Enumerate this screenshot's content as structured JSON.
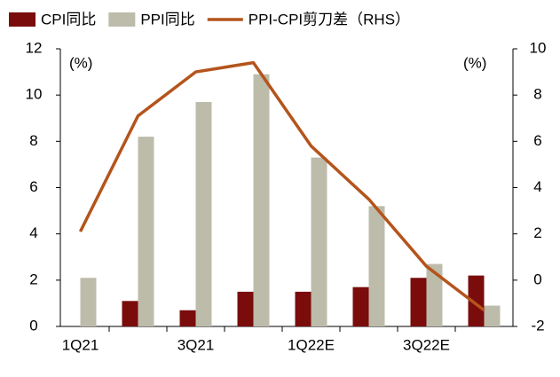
{
  "chart_data": {
    "type": "bar",
    "categories": [
      "1Q21",
      null,
      "3Q21",
      null,
      "1Q22E",
      null,
      "3Q22E",
      null
    ],
    "series": [
      {
        "name": "CPI同比",
        "color": "#7a0c0c",
        "type": "bar",
        "values": [
          0,
          1.1,
          0.7,
          1.5,
          1.5,
          1.7,
          2.1,
          2.2
        ]
      },
      {
        "name": "PPI同比",
        "color": "#bdbcab",
        "type": "bar",
        "values": [
          2.1,
          8.2,
          9.7,
          10.9,
          7.3,
          5.2,
          2.7,
          0.9
        ]
      },
      {
        "name": "PPI-CPI剪刀差（RHS）",
        "color": "#b4541c",
        "type": "line",
        "axis": "y2",
        "values": [
          2.1,
          7.1,
          9.0,
          9.4,
          5.8,
          3.5,
          0.6,
          -1.3
        ]
      }
    ],
    "ylim": [
      0,
      12
    ],
    "yticks": [
      0,
      2,
      4,
      6,
      8,
      10,
      12
    ],
    "y2lim": [
      -2,
      10
    ],
    "y2ticks": [
      -2,
      0,
      2,
      4,
      6,
      8,
      10
    ],
    "annotations": [
      "(%)",
      "(%)"
    ],
    "legend": "top"
  }
}
